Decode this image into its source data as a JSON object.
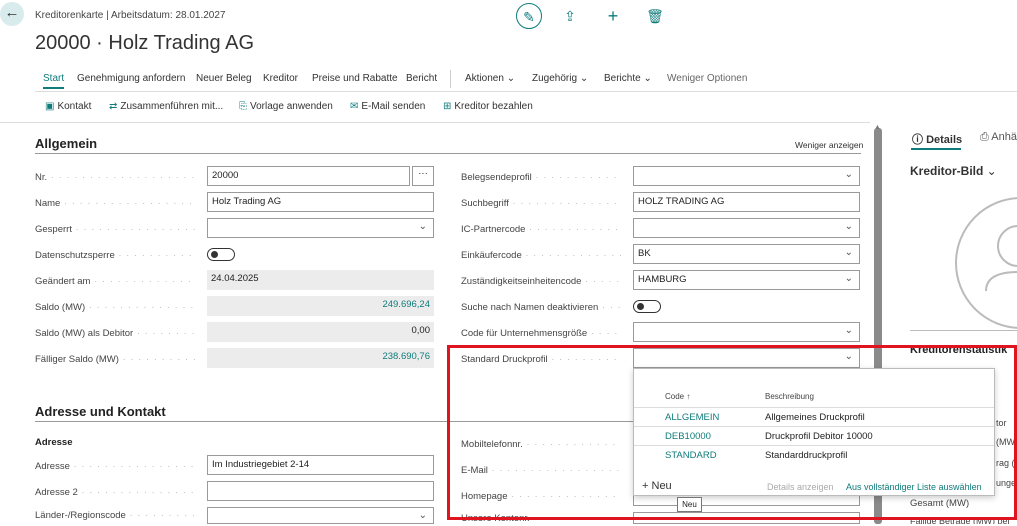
{
  "header": {
    "breadcrumb": "Kreditorenkarte | Arbeitsdatum: 28.01.2027",
    "title": "20000 · Holz Trading AG"
  },
  "menu": [
    "Start",
    "Genehmigung anfordern",
    "Neuer Beleg",
    "Kreditor",
    "Preise und Rabatte",
    "Bericht",
    "Aktionen",
    "Zugehörig",
    "Berichte",
    "Weniger Optionen"
  ],
  "actions": [
    "Kontakt",
    "Zusammenführen mit...",
    "Vorlage anwenden",
    "E-Mail senden",
    "Kreditor bezahlen"
  ],
  "general": {
    "title": "Allgemein",
    "show_less": "Weniger anzeigen",
    "left": [
      {
        "label": "Nr.",
        "value": "20000"
      },
      {
        "label": "Name",
        "value": "Holz Trading AG"
      },
      {
        "label": "Gesperrt",
        "value": ""
      },
      {
        "label": "Datenschutzsperre",
        "value": "off"
      },
      {
        "label": "Geändert am",
        "value": "24.04.2025"
      },
      {
        "label": "Saldo (MW)",
        "value": "249.696,24"
      },
      {
        "label": "Saldo (MW) als Debitor",
        "value": "0,00"
      },
      {
        "label": "Fälliger Saldo (MW)",
        "value": "238.690,76"
      }
    ],
    "right": [
      {
        "label": "Belegsendeprofil",
        "value": ""
      },
      {
        "label": "Suchbegriff",
        "value": "HOLZ TRADING AG"
      },
      {
        "label": "IC-Partnercode",
        "value": ""
      },
      {
        "label": "Einkäufercode",
        "value": "BK"
      },
      {
        "label": "Zuständigkeitseinheitencode",
        "value": "HAMBURG"
      },
      {
        "label": "Suche nach Namen deaktivieren",
        "value": "off"
      },
      {
        "label": "Code für Unternehmensgröße",
        "value": ""
      },
      {
        "label": "Standard Druckprofil",
        "value": ""
      }
    ]
  },
  "address": {
    "title": "Adresse und Kontakt",
    "sub": "Adresse",
    "left": [
      {
        "label": "Adresse",
        "value": "Im Industriegebiet 2-14"
      },
      {
        "label": "Adresse 2",
        "value": ""
      },
      {
        "label": "Länder-/Regionscode",
        "value": ""
      }
    ],
    "right": [
      {
        "label": "Mobiltelefonnr."
      },
      {
        "label": "E-Mail"
      },
      {
        "label": "Homepage"
      },
      {
        "label": "Unsere Kontonr."
      }
    ]
  },
  "dropdown": {
    "col_code": "Code ↑",
    "col_desc": "Beschreibung",
    "rows": [
      {
        "code": "ALLGEMEIN",
        "desc": "Allgemeines Druckprofil"
      },
      {
        "code": "DEB10000",
        "desc": "Druckprofil Debitor 10000"
      },
      {
        "code": "STANDARD",
        "desc": "Standarddruckprofil"
      }
    ],
    "new": "Neu",
    "details": "Details anzeigen",
    "full_list": "Aus vollständiger Liste auswählen",
    "tooltip": "Neu"
  },
  "factbox": {
    "tab_details": "Details",
    "tab_attach": "Anhä",
    "picture_title": "Kreditor-Bild",
    "stats_title": "Kreditorenstatistik",
    "fragments": [
      "tor",
      "(MW",
      "rag (",
      "unge"
    ],
    "total": "Gesamt (MW)",
    "cut": "Fällige Beträge (MW) bei"
  }
}
